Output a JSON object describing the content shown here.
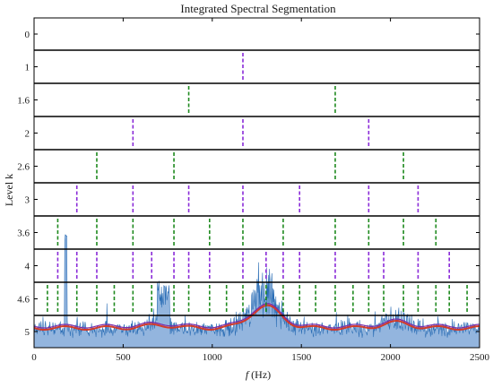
{
  "chart_data": {
    "type": "line",
    "title": "Integrated Spectral Segmentation",
    "xlabel_italic": "f",
    "xlabel_unit": " (Hz)",
    "ylabel": "Level k",
    "xlim": [
      0,
      2500
    ],
    "x_ticks": [
      0,
      500,
      1000,
      1500,
      2000,
      2500
    ],
    "level_labels": [
      "0",
      "1",
      "1.6",
      "2",
      "2.6",
      "3",
      "3.6",
      "4",
      "4.6",
      "5"
    ],
    "dashed_boundaries": [
      {
        "level": "1",
        "color": "purple",
        "x": [
          1172
        ]
      },
      {
        "level": "1.6",
        "color": "green",
        "x": [
          868,
          1690
        ]
      },
      {
        "level": "2",
        "color": "purple",
        "x": [
          555,
          1172,
          1878
        ]
      },
      {
        "level": "2.6",
        "color": "green",
        "x": [
          352,
          785,
          1690,
          2073
        ]
      },
      {
        "level": "3",
        "color": "purple",
        "x": [
          240,
          555,
          868,
          1172,
          1490,
          1878,
          2155
        ]
      },
      {
        "level": "3.6",
        "color": "green",
        "x": [
          133,
          352,
          555,
          785,
          985,
          1172,
          1398,
          1690,
          1878,
          2073,
          2255
        ]
      },
      {
        "level": "4",
        "color": "purple",
        "x": [
          133,
          240,
          352,
          555,
          660,
          785,
          868,
          985,
          1172,
          1302,
          1398,
          1490,
          1690,
          1878,
          1962,
          2155,
          2330
        ]
      },
      {
        "level": "4.6",
        "color": "green",
        "x": [
          75,
          133,
          240,
          352,
          450,
          555,
          660,
          785,
          868,
          985,
          1080,
          1172,
          1302,
          1398,
          1490,
          1580,
          1690,
          1790,
          1878,
          1962,
          2073,
          2155,
          2255,
          2330,
          2430
        ]
      }
    ],
    "colors": {
      "spectrum": "#2a6db5",
      "envelope_red": "#d23a2a",
      "envelope_purple": "#7a2aa8",
      "green_dash": "#1f8a1f",
      "purple_dash": "#8a2bd8",
      "separator": "#000000"
    }
  }
}
